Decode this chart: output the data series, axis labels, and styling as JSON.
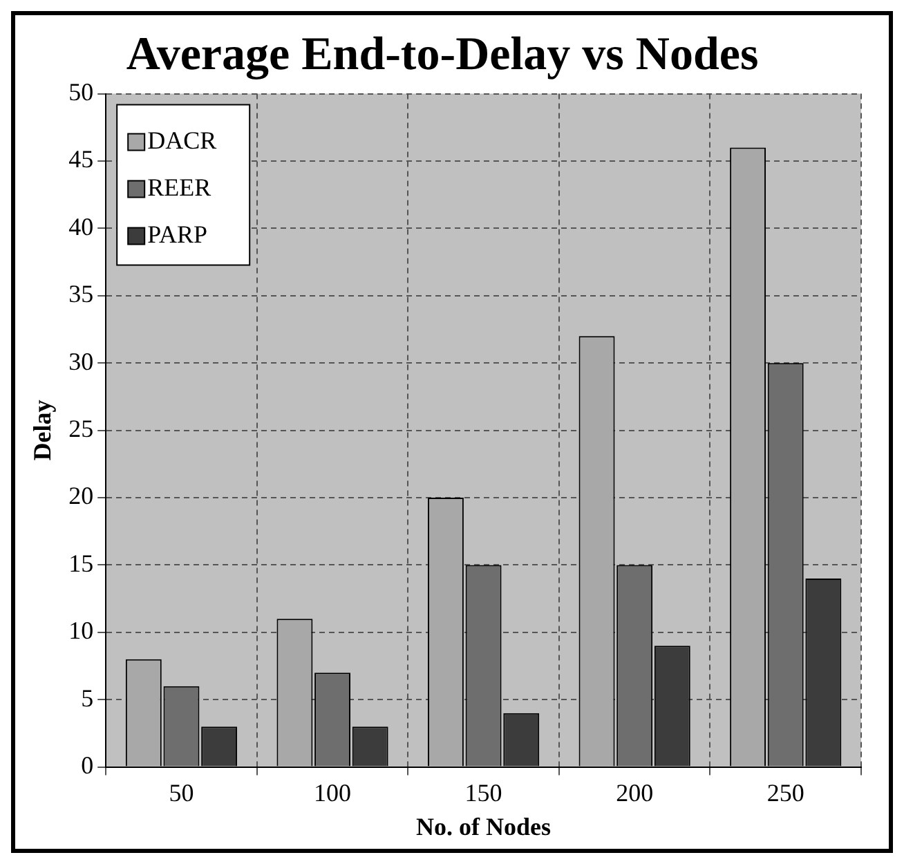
{
  "chart_data": {
    "type": "bar",
    "title": "Average End-to-Delay vs Nodes",
    "xlabel": "No. of Nodes",
    "ylabel": "Delay",
    "categories": [
      "50",
      "100",
      "150",
      "200",
      "250"
    ],
    "series": [
      {
        "name": "DACR",
        "color": "#a8a8a8",
        "values": [
          8,
          11,
          20,
          32,
          46
        ]
      },
      {
        "name": "REER",
        "color": "#6e6e6e",
        "values": [
          6,
          7,
          15,
          15,
          30
        ]
      },
      {
        "name": "PARP",
        "color": "#3c3c3c",
        "values": [
          3,
          3,
          4,
          9,
          14
        ]
      }
    ],
    "ylim": [
      0,
      50
    ],
    "yticks": [
      0,
      5,
      10,
      15,
      20,
      25,
      30,
      35,
      40,
      45,
      50
    ],
    "grid": true,
    "legend": "top left"
  }
}
